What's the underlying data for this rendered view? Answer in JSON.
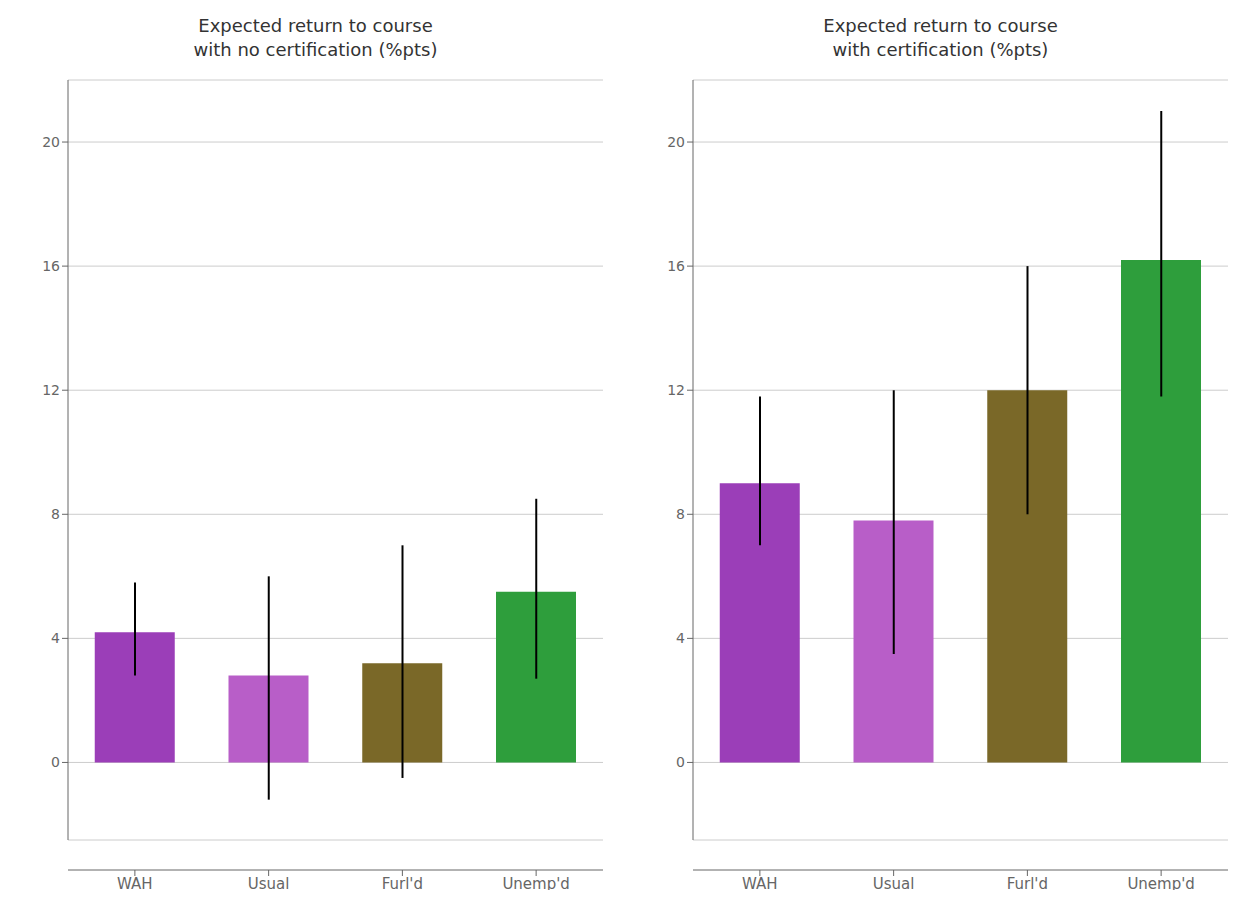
{
  "chart_data": [
    {
      "type": "bar",
      "title": "Expected return to course\nwith no certification (%pts)",
      "categories": [
        "WAH",
        "Usual",
        "Furl'd",
        "Unemp'd"
      ],
      "values": [
        4.2,
        2.8,
        3.2,
        5.5
      ],
      "ci_low": [
        2.8,
        -1.2,
        -0.5,
        2.7
      ],
      "ci_high": [
        5.8,
        6.0,
        7.0,
        8.5
      ],
      "colors": [
        "#9b3eb8",
        "#b85ec8",
        "#7a6828",
        "#2e9e3c"
      ],
      "ylim": [
        -2.5,
        22
      ],
      "yticks": [
        0,
        4,
        8,
        12,
        16,
        20
      ],
      "grid": true
    },
    {
      "type": "bar",
      "title": "Expected return to course\nwith certification (%pts)",
      "categories": [
        "WAH",
        "Usual",
        "Furl'd",
        "Unemp'd"
      ],
      "values": [
        9.0,
        7.8,
        12.0,
        16.2
      ],
      "ci_low": [
        7.0,
        3.5,
        8.0,
        11.8
      ],
      "ci_high": [
        11.8,
        12.0,
        16.0,
        21.0
      ],
      "colors": [
        "#9b3eb8",
        "#b85ec8",
        "#7a6828",
        "#2e9e3c"
      ],
      "ylim": [
        -2.5,
        22
      ],
      "yticks": [
        0,
        4,
        8,
        12,
        16,
        20
      ],
      "grid": true
    }
  ]
}
